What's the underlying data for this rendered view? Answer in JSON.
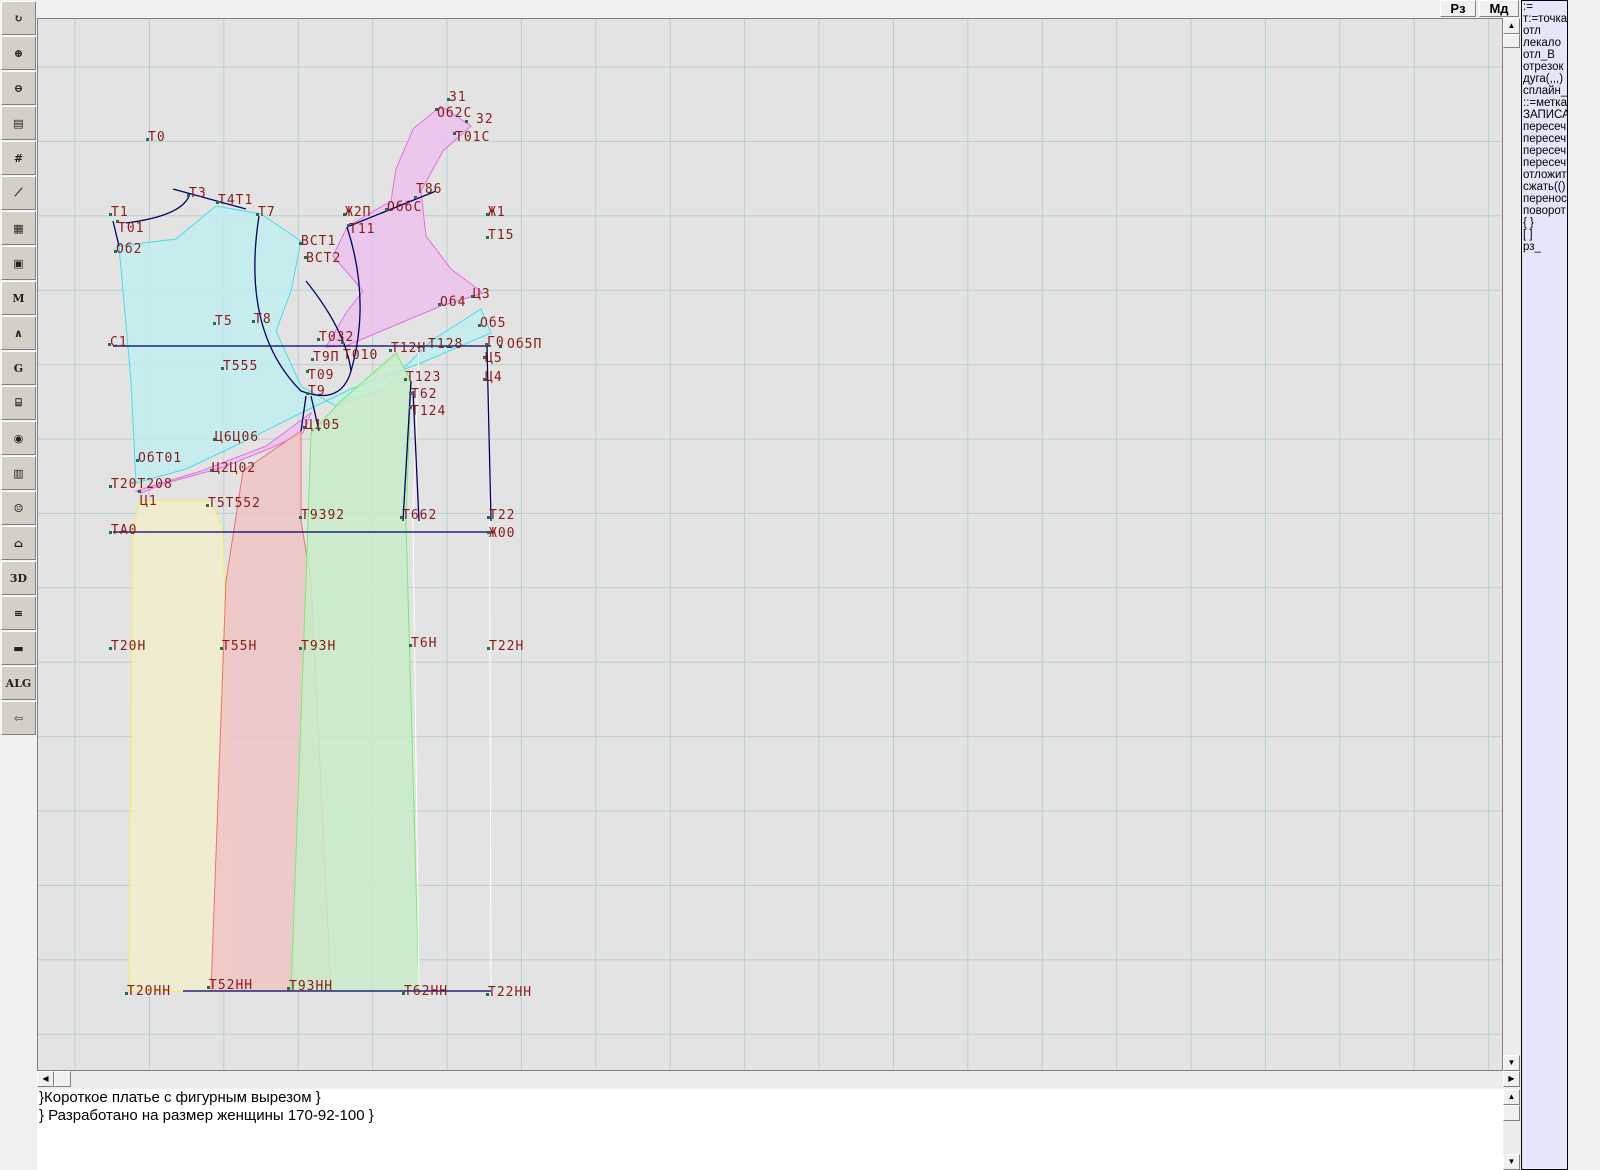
{
  "toolbar": {
    "items": [
      {
        "name": "refresh",
        "glyph": "↻"
      },
      {
        "name": "zoom-in",
        "glyph": "⊕"
      },
      {
        "name": "zoom-out",
        "glyph": "⊖"
      },
      {
        "name": "view-pattern",
        "glyph": "▤"
      },
      {
        "name": "grid",
        "glyph": "#"
      },
      {
        "name": "line",
        "glyph": "⟋"
      },
      {
        "name": "map",
        "glyph": "▦"
      },
      {
        "name": "pattern",
        "glyph": "▣"
      },
      {
        "name": "model",
        "glyph": "M"
      },
      {
        "name": "compass",
        "glyph": "∧"
      },
      {
        "name": "grading",
        "glyph": "G"
      },
      {
        "name": "ruler",
        "glyph": "⌸"
      },
      {
        "name": "camera",
        "glyph": "◉"
      },
      {
        "name": "table",
        "glyph": "▥"
      },
      {
        "name": "photo",
        "glyph": "☺"
      },
      {
        "name": "garment",
        "glyph": "⌂"
      },
      {
        "name": "3d",
        "glyph": "3D"
      },
      {
        "name": "list",
        "glyph": "≡"
      },
      {
        "name": "books",
        "glyph": "▬"
      },
      {
        "name": "algorithm",
        "glyph": "ALG"
      },
      {
        "name": "exit",
        "glyph": "⇦"
      }
    ]
  },
  "topbar": {
    "rz_label": "Рз",
    "md_label": "Мд"
  },
  "commands": [
    ":=",
    "т:=точка",
    "отл",
    "лекало",
    "отл_В",
    "отрезок",
    "дуга(,,,)",
    "сплайн_",
    "::=метка",
    "ЗАПИСА",
    "пересеч",
    "пересеч",
    "пересеч",
    "пересеч",
    "отложит",
    "сжать(()",
    "перенос",
    "поворот",
    "{ }",
    "[ ]",
    "рз_"
  ],
  "notes": {
    "line1": "}Короткое платье с фигурным вырезом }",
    "line2": "} Разработано на размер женщины 170-92-100 }"
  },
  "labels": [
    "31",
    "Об2С",
    "32",
    "Т01С",
    "Т0",
    "Т3",
    "Т4Т1",
    "Т1",
    "Т01",
    "Т7",
    "Об2",
    "Ж2П",
    "Т11",
    "ОббС",
    "Т86",
    "Ж1",
    "Т15",
    "ВСТ1",
    "ВСТ2",
    "Об4",
    "Ц3",
    "Об5",
    "Т5",
    "Т8",
    "С1",
    "Т032",
    "Т010",
    "Т12Н",
    "Т128",
    "Г0",
    "Об5П",
    "Т9П",
    "Т555",
    "Т09",
    "Ц5",
    "Т123",
    "Ц4",
    "Т62",
    "Т124",
    "Т9",
    "Ц105",
    "Ц6Ц06",
    "ОбТ01",
    "Ц2Ц02",
    "Т20Т208",
    "Ц1",
    "Т5Т552",
    "Т9392",
    "Т662",
    "Т22",
    "ТА0",
    "Ж00",
    "Т20Н",
    "Т55Н",
    "Т93Н",
    "Т6Н",
    "Т22Н",
    "Т20НН",
    "Т52НН",
    "Т93НН",
    "Т62НН",
    "Т22НН"
  ],
  "colors": {
    "canvas": "#e3e3e3",
    "grid": "#b8d0d0",
    "line": "#000066",
    "label": "#8b1a1a",
    "bodice": "#bfeef0",
    "facing": "#ecc2ec",
    "skirt_yellow": "#f0eccc",
    "skirt_red": "#f0c4c4",
    "skirt_green": "#c8ecc8",
    "panel": "#e6e6fa"
  }
}
